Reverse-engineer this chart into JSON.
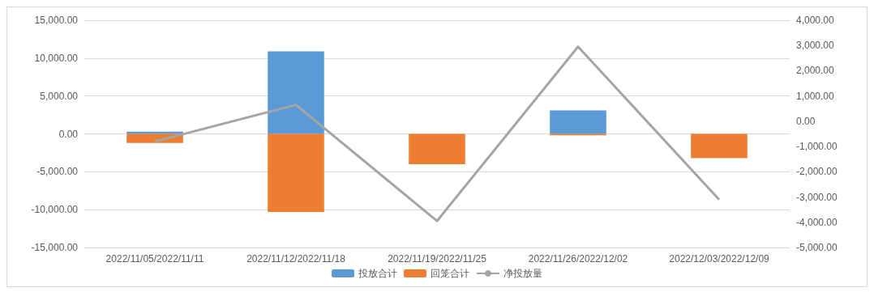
{
  "chart_data": {
    "type": "bar",
    "stacked": true,
    "categories": [
      "2022/11/05/2022/11/11",
      "2022/11/12/2022/11/18",
      "2022/11/19/2022/11/25",
      "2022/11/26/2022/12/02",
      "2022/12/03/2022/12/09"
    ],
    "series": [
      {
        "name": "投放合计",
        "color": "#5b9bd5",
        "values": [
          300,
          10900,
          0,
          3100,
          0
        ]
      },
      {
        "name": "回笼合计",
        "color": "#ed7d31",
        "values": [
          -1200,
          -10300,
          -4000,
          -200,
          -3200
        ]
      },
      {
        "name": "净投放量",
        "type": "line",
        "axis": "y2",
        "color": "#a5a5a5",
        "values": [
          -800,
          650,
          -3950,
          2950,
          -3100
        ]
      }
    ],
    "ylim": [
      -15000,
      15000
    ],
    "yticks": [
      {
        "value": -15000,
        "label": "-15,000.00"
      },
      {
        "value": -10000,
        "label": "-10,000.00"
      },
      {
        "value": -5000,
        "label": "-5,000.00"
      },
      {
        "value": 0,
        "label": "0.00"
      },
      {
        "value": 5000,
        "label": "5,000.00"
      },
      {
        "value": 10000,
        "label": "10,000.00"
      },
      {
        "value": 15000,
        "label": "15,000.00"
      }
    ],
    "y2lim": [
      -5000,
      4000
    ],
    "y2ticks": [
      {
        "value": -5000,
        "label": "-5,000.00"
      },
      {
        "value": -4000,
        "label": "-4,000.00"
      },
      {
        "value": -3000,
        "label": "-3,000.00"
      },
      {
        "value": -2000,
        "label": "-2,000.00"
      },
      {
        "value": -1000,
        "label": "-1,000.00"
      },
      {
        "value": 0,
        "label": "0.00"
      },
      {
        "value": 1000,
        "label": "1,000.00"
      },
      {
        "value": 2000,
        "label": "2,000.00"
      },
      {
        "value": 3000,
        "label": "3,000.00"
      },
      {
        "value": 4000,
        "label": "4,000.00"
      }
    ],
    "grid": "y",
    "legend": "bottom",
    "marker": "none"
  }
}
